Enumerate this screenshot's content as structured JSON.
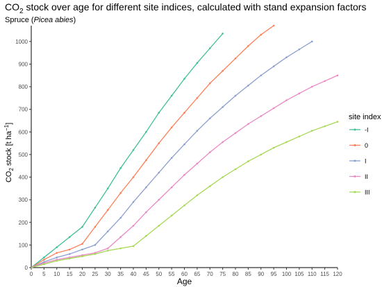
{
  "chart_data": {
    "type": "line",
    "title_parts": {
      "prefix": "CO",
      "sub": "2",
      "suffix": " stock over age for different site indices, calculated with stand expansion factors"
    },
    "subtitle_parts": {
      "prefix": "Spruce (",
      "italic": "Picea abies",
      "suffix": ")"
    },
    "xlabel": "Age",
    "ylabel_parts": {
      "a": "CO",
      "sub": "2",
      "b": " stock [t ha",
      "sup": "−1",
      "c": "]"
    },
    "xlim": [
      0,
      120
    ],
    "ylim": [
      0,
      1070
    ],
    "x_ticks": [
      0,
      5,
      10,
      15,
      20,
      25,
      30,
      35,
      40,
      45,
      50,
      55,
      60,
      65,
      70,
      75,
      80,
      85,
      90,
      95,
      100,
      105,
      110,
      115,
      120
    ],
    "y_ticks": [
      0,
      100,
      200,
      300,
      400,
      500,
      600,
      700,
      800,
      900,
      1000
    ],
    "grid": false,
    "legend": {
      "title": "site index",
      "position": "right"
    },
    "series": [
      {
        "name": "-I",
        "color": "#3fbf9a",
        "x": [
          0,
          5,
          10,
          15,
          20,
          25,
          30,
          35,
          40,
          45,
          50,
          55,
          60,
          65,
          70,
          75
        ],
        "y": [
          0,
          45,
          90,
          135,
          180,
          265,
          350,
          440,
          520,
          600,
          685,
          760,
          835,
          905,
          970,
          1035
        ]
      },
      {
        "name": "0",
        "color": "#fc7f57",
        "x": [
          0,
          5,
          10,
          15,
          20,
          25,
          30,
          35,
          40,
          45,
          50,
          55,
          60,
          65,
          70,
          75,
          80,
          85,
          90,
          95
        ],
        "y": [
          0,
          35,
          65,
          80,
          105,
          180,
          255,
          330,
          400,
          475,
          550,
          620,
          685,
          750,
          815,
          870,
          925,
          980,
          1030,
          1070
        ]
      },
      {
        "name": "I",
        "color": "#8c9fcf",
        "x": [
          0,
          5,
          10,
          15,
          20,
          25,
          30,
          35,
          40,
          45,
          50,
          55,
          60,
          65,
          70,
          75,
          80,
          85,
          90,
          95,
          100,
          105,
          110
        ],
        "y": [
          0,
          25,
          45,
          60,
          80,
          100,
          160,
          220,
          290,
          355,
          420,
          485,
          545,
          605,
          660,
          710,
          760,
          805,
          850,
          890,
          930,
          965,
          1000
        ]
      },
      {
        "name": "II",
        "color": "#e889c4",
        "x": [
          0,
          5,
          10,
          15,
          20,
          25,
          30,
          35,
          40,
          45,
          50,
          55,
          60,
          65,
          70,
          75,
          80,
          85,
          90,
          95,
          100,
          105,
          110,
          115,
          120
        ],
        "y": [
          0,
          20,
          35,
          45,
          55,
          65,
          85,
          135,
          185,
          245,
          300,
          355,
          410,
          460,
          510,
          555,
          595,
          635,
          670,
          705,
          740,
          770,
          800,
          825,
          850
        ]
      },
      {
        "name": "III",
        "color": "#a6d854",
        "x": [
          0,
          5,
          10,
          15,
          20,
          25,
          30,
          35,
          40,
          45,
          50,
          55,
          60,
          65,
          70,
          75,
          80,
          85,
          90,
          95,
          100,
          105,
          110,
          115,
          120
        ],
        "y": [
          0,
          15,
          30,
          40,
          50,
          60,
          75,
          85,
          95,
          140,
          185,
          230,
          275,
          320,
          360,
          400,
          435,
          470,
          500,
          530,
          555,
          580,
          605,
          625,
          645
        ]
      }
    ]
  }
}
